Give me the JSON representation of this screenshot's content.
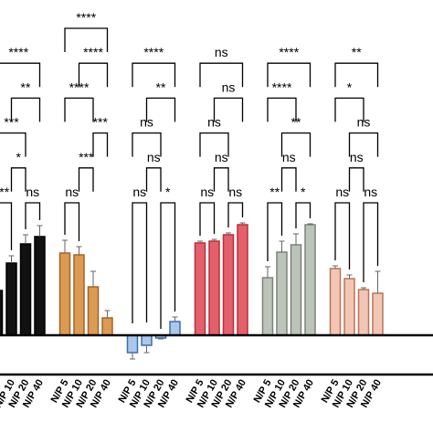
{
  "chart_data": {
    "type": "bar",
    "categories": [
      "N/P 5",
      "N/P 10",
      "N/P 20",
      "N/P 40"
    ],
    "groups": [
      {
        "color": "#111111",
        "edge": "#000000",
        "values": [
          49,
          79,
          100,
          108
        ],
        "errors": [
          8,
          8,
          10,
          12
        ],
        "comparisons": [
          {
            "pair": [
              0,
              1
            ],
            "label": "**"
          },
          {
            "pair": [
              2,
              3
            ],
            "label": "ns"
          },
          {
            "pair": [
              1,
              2
            ],
            "label": "*"
          },
          {
            "pair": [
              0,
              2
            ],
            "label": "***"
          },
          {
            "pair": [
              1,
              3
            ],
            "label": "**"
          },
          {
            "pair": [
              0,
              3
            ],
            "label": "****"
          }
        ]
      },
      {
        "color": "#dc9a52",
        "edge": "#a0652a",
        "values": [
          90,
          88,
          53,
          19
        ],
        "errors": [
          14,
          9,
          17,
          8
        ],
        "comparisons": [
          {
            "pair": [
              0,
              1
            ],
            "label": "ns"
          },
          {
            "pair": [
              1,
              2
            ],
            "label": "***"
          },
          {
            "pair": [
              2,
              3
            ],
            "label": "***"
          },
          {
            "pair": [
              0,
              2
            ],
            "label": "****"
          },
          {
            "pair": [
              1,
              3
            ],
            "label": "****"
          },
          {
            "pair": [
              0,
              3
            ],
            "label": "****"
          }
        ]
      },
      {
        "color": "#a9c8ec",
        "edge": "#3a6fb0",
        "values": [
          -19,
          -11,
          -3,
          15
        ],
        "errors": [
          7,
          8,
          1,
          5
        ],
        "comparisons": [
          {
            "pair": [
              0,
              1
            ],
            "label": "ns"
          },
          {
            "pair": [
              2,
              3
            ],
            "label": "*"
          },
          {
            "pair": [
              1,
              2
            ],
            "label": "ns"
          },
          {
            "pair": [
              0,
              2
            ],
            "label": "ns"
          },
          {
            "pair": [
              1,
              3
            ],
            "label": "**"
          },
          {
            "pair": [
              0,
              3
            ],
            "label": "****"
          }
        ]
      },
      {
        "color": "#e4616c",
        "edge": "#b3303c",
        "values": [
          101,
          103,
          110,
          121
        ],
        "errors": [
          2,
          2,
          2,
          2
        ],
        "comparisons": [
          {
            "pair": [
              0,
              1
            ],
            "label": "ns"
          },
          {
            "pair": [
              2,
              3
            ],
            "label": "ns"
          },
          {
            "pair": [
              1,
              2
            ],
            "label": "ns"
          },
          {
            "pair": [
              0,
              2
            ],
            "label": "ns"
          },
          {
            "pair": [
              1,
              3
            ],
            "label": "ns"
          },
          {
            "pair": [
              0,
              3
            ],
            "label": "ns"
          }
        ]
      },
      {
        "color": "#bcc3b9",
        "edge": "#7b8479",
        "values": [
          63,
          91,
          99,
          121
        ],
        "errors": [
          12,
          12,
          12,
          1
        ],
        "comparisons": [
          {
            "pair": [
              0,
              1
            ],
            "label": "**"
          },
          {
            "pair": [
              2,
              3
            ],
            "label": "*"
          },
          {
            "pair": [
              1,
              2
            ],
            "label": "ns"
          },
          {
            "pair": [
              1,
              3
            ],
            "label": "**"
          },
          {
            "pair": [
              0,
              2
            ],
            "label": "****"
          },
          {
            "pair": [
              0,
              3
            ],
            "label": "****"
          }
        ]
      },
      {
        "color": "#f2c6b2",
        "edge": "#b4765c",
        "values": [
          73,
          62,
          50,
          46
        ],
        "errors": [
          3,
          4,
          2,
          24
        ],
        "comparisons": [
          {
            "pair": [
              0,
              1
            ],
            "label": "ns"
          },
          {
            "pair": [
              2,
              3
            ],
            "label": "ns"
          },
          {
            "pair": [
              1,
              2
            ],
            "label": "ns"
          },
          {
            "pair": [
              1,
              3
            ],
            "label": "ns"
          },
          {
            "pair": [
              0,
              2
            ],
            "label": "*"
          },
          {
            "pair": [
              0,
              3
            ],
            "label": "**"
          }
        ]
      }
    ]
  }
}
